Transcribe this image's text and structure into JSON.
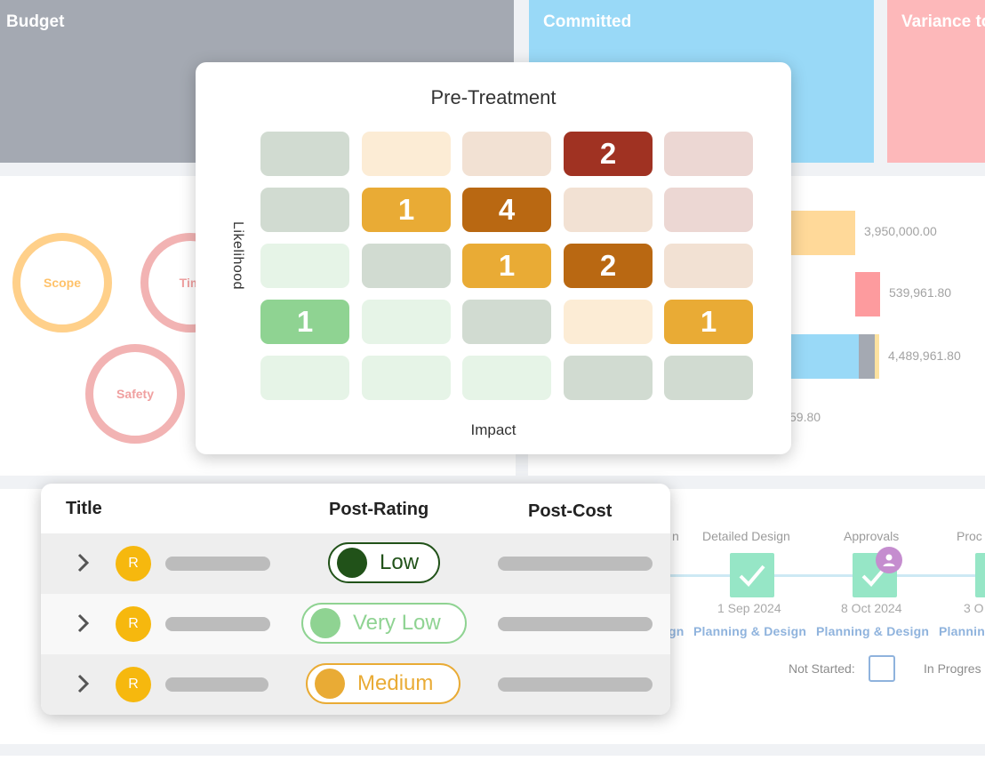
{
  "cards": {
    "budget": "Budget",
    "committed": "Committed",
    "variance": "Variance to"
  },
  "rings": [
    {
      "label": "Scope",
      "color": "#ffd08a"
    },
    {
      "label": "Tim",
      "color": "#f2b3b3"
    },
    {
      "label": "Safety",
      "color": "#f2b3b3"
    }
  ],
  "bar_values": {
    "b1": "3,950,000.00",
    "b2": "539,961.80",
    "b3": "4,489,961.80",
    "b4": "59.80"
  },
  "timeline": {
    "stage_partial": "n",
    "stages": [
      "Detailed Design",
      "Approvals",
      "Proc"
    ],
    "dates": [
      "1 Sep 2024",
      "8 Oct 2024",
      "3 O"
    ],
    "phases": [
      "gn",
      "Planning & Design",
      "Planning & Design",
      "Plannin"
    ],
    "legend_not_started": "Not Started:",
    "legend_in_progress": "In Progres"
  },
  "matrix": {
    "title": "Pre-Treatment",
    "y_label": "Likelihood",
    "x_label": "Impact",
    "cells": [
      [
        "",
        "",
        "",
        "2",
        ""
      ],
      [
        "",
        "1",
        "4",
        "",
        ""
      ],
      [
        "",
        "",
        "1",
        "2",
        ""
      ],
      [
        "1",
        "",
        "",
        "",
        "1"
      ],
      [
        "",
        "",
        "",
        "",
        ""
      ]
    ],
    "colors": [
      [
        "#d1dbd1",
        "#fcecd5",
        "#f2e1d3",
        "#a03222",
        "#ecd7d3"
      ],
      [
        "#d1dbd1",
        "#e9ab35",
        "#b96812",
        "#f2e1d3",
        "#ecd7d3"
      ],
      [
        "#e6f4e7",
        "#d1dbd1",
        "#e9ab35",
        "#b96812",
        "#f2e1d3"
      ],
      [
        "#8fd392",
        "#e6f4e7",
        "#d1dbd1",
        "#fcecd5",
        "#e9ab35"
      ],
      [
        "#e6f4e7",
        "#e6f4e7",
        "#e6f4e7",
        "#d1dbd1",
        "#d1dbd1"
      ]
    ]
  },
  "table": {
    "headers": {
      "title": "Title",
      "post_rating": "Post-Rating",
      "post_cost": "Post-Cost"
    },
    "rows": [
      {
        "avatar": "R",
        "rating": "Low",
        "rating_color": "#215219",
        "text_color": "#215219"
      },
      {
        "avatar": "R",
        "rating": "Very Low",
        "rating_color": "#8fd392",
        "text_color": "#8fd392"
      },
      {
        "avatar": "R",
        "rating": "Medium",
        "rating_color": "#e9ab35",
        "text_color": "#e9ab35"
      }
    ]
  }
}
